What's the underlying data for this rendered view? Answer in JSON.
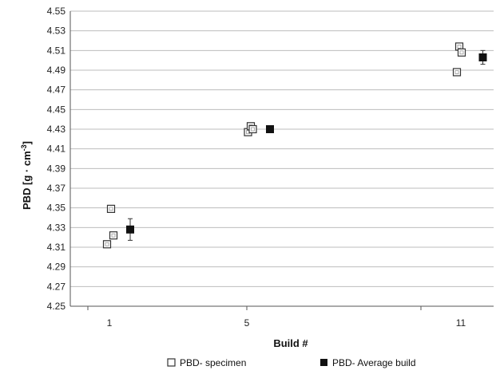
{
  "chart_data": {
    "type": "scatter",
    "xlabel": "Build #",
    "ylabel_main": "PBD [g · cm",
    "ylabel_sup": "-3",
    "ylabel_end": "]",
    "ylim": [
      4.25,
      4.55
    ],
    "y_ticks": [
      "4.25",
      "4.27",
      "4.29",
      "4.31",
      "4.33",
      "4.35",
      "4.37",
      "4.39",
      "4.41",
      "4.43",
      "4.45",
      "4.47",
      "4.49",
      "4.51",
      "4.53",
      "4.55"
    ],
    "categories": [
      "1",
      "5",
      "11"
    ],
    "grid": "horizontal",
    "legend_position": "bottom",
    "series": [
      {
        "name": "PBD- specimen",
        "marker": "hollow-square",
        "points": [
          {
            "build": "1",
            "offset": -0.06,
            "y": 4.313
          },
          {
            "build": "1",
            "offset": 0.04,
            "y": 4.349
          },
          {
            "build": "1",
            "offset": 0.1,
            "y": 4.322
          },
          {
            "build": "5",
            "offset": 0.03,
            "y": 4.427
          },
          {
            "build": "5",
            "offset": 0.1,
            "y": 4.433
          },
          {
            "build": "5",
            "offset": 0.15,
            "y": 4.43
          },
          {
            "build": "11",
            "offset": 0.9,
            "y": 4.488
          },
          {
            "build": "11",
            "offset": 0.96,
            "y": 4.514
          },
          {
            "build": "11",
            "offset": 1.02,
            "y": 4.508
          }
        ]
      },
      {
        "name": "PBD- Average build",
        "marker": "filled-square",
        "points": [
          {
            "build": "1",
            "offset": 0.52,
            "y": 4.328,
            "err": 0.011
          },
          {
            "build": "5",
            "offset": 0.58,
            "y": 4.43,
            "err": 0.001
          },
          {
            "build": "11",
            "offset": 1.55,
            "y": 4.503,
            "err": 0.007
          }
        ]
      }
    ]
  }
}
